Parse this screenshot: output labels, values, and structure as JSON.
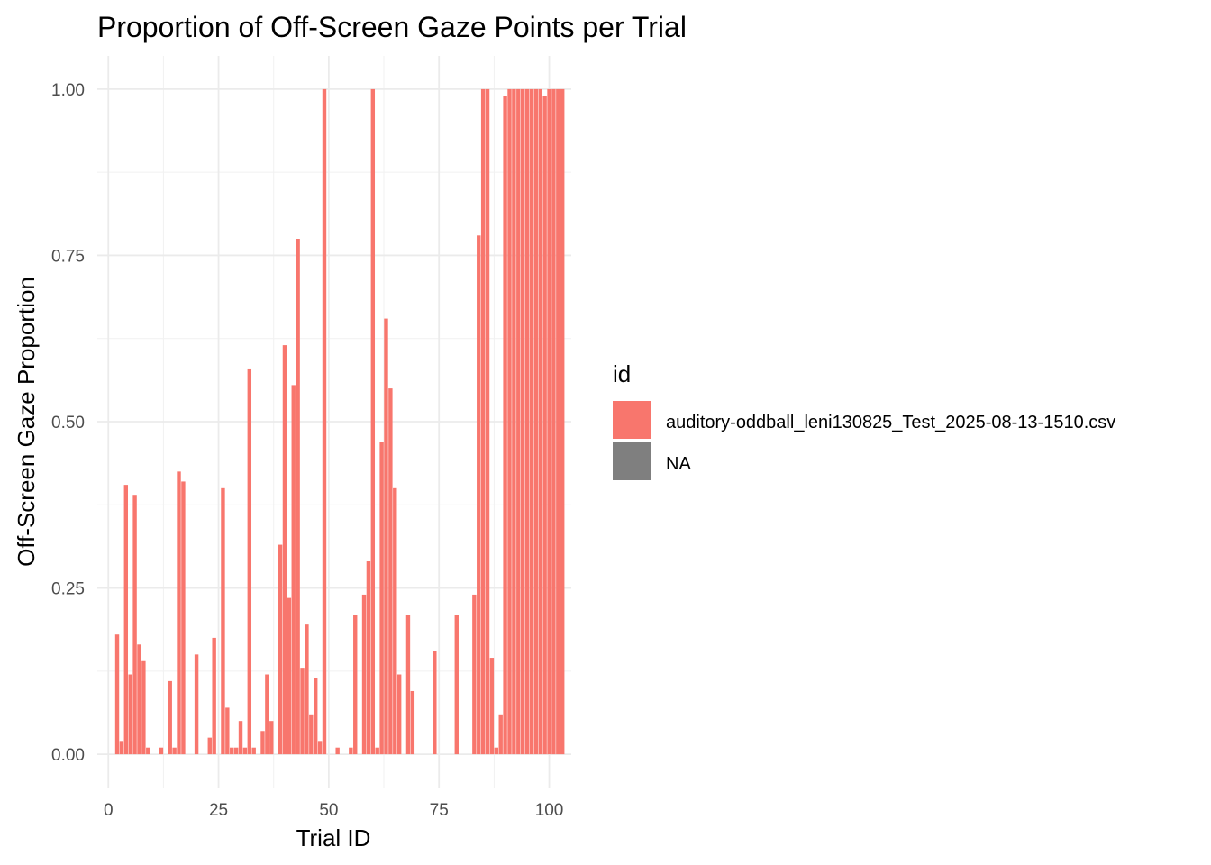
{
  "chart_data": {
    "type": "bar",
    "title": "Proportion of Off-Screen Gaze Points per Trial",
    "xlabel": "Trial ID",
    "ylabel": "Off-Screen Gaze Proportion",
    "xlim": [
      -2.5,
      105
    ],
    "ylim": [
      -0.05,
      1.05
    ],
    "x_ticks": [
      0,
      25,
      50,
      75,
      100
    ],
    "x_tick_labels": [
      "0",
      "25",
      "50",
      "75",
      "100"
    ],
    "y_ticks": [
      0,
      0.25,
      0.5,
      0.75,
      1.0
    ],
    "y_tick_labels": [
      "0.00",
      "0.25",
      "0.50",
      "0.75",
      "1.00"
    ],
    "grid": true,
    "theme": "minimal",
    "legend": {
      "title": "id",
      "position": "right",
      "entries": [
        {
          "label": "auditory-oddball_leni130825_Test_2025-08-13-1510.csv",
          "color": "#F8766D"
        },
        {
          "label": "NA",
          "color": "#7F7F7F"
        }
      ]
    },
    "series": [
      {
        "name": "auditory-oddball_leni130825_Test_2025-08-13-1510.csv",
        "color": "#F8766D",
        "x": [
          2,
          3,
          4,
          5,
          6,
          7,
          8,
          9,
          12,
          14,
          15,
          16,
          17,
          20,
          23,
          24,
          26,
          27,
          28,
          29,
          30,
          31,
          32,
          33,
          35,
          36,
          37,
          39,
          40,
          41,
          42,
          43,
          44,
          45,
          46,
          47,
          48,
          49,
          52,
          55,
          56,
          58,
          59,
          60,
          61,
          62,
          63,
          64,
          65,
          66,
          68,
          69,
          74,
          79,
          83,
          84,
          85,
          86,
          87,
          88,
          89,
          90,
          91,
          92,
          93,
          94,
          95,
          96,
          97,
          98,
          99,
          100,
          101,
          102,
          103
        ],
        "values": [
          0.18,
          0.02,
          0.405,
          0.12,
          0.39,
          0.165,
          0.14,
          0.01,
          0.01,
          0.11,
          0.01,
          0.425,
          0.41,
          0.15,
          0.025,
          0.175,
          0.4,
          0.07,
          0.01,
          0.01,
          0.05,
          0.01,
          0.58,
          0.01,
          0.035,
          0.12,
          0.05,
          0.315,
          0.615,
          0.235,
          0.555,
          0.775,
          0.13,
          0.195,
          0.06,
          0.115,
          0.02,
          1.0,
          0.01,
          0.01,
          0.21,
          0.24,
          0.29,
          1.0,
          0.01,
          0.47,
          0.655,
          0.55,
          0.4,
          0.12,
          0.21,
          0.095,
          0.155,
          0.21,
          0.24,
          0.78,
          1.0,
          1.0,
          0.145,
          0.01,
          0.06,
          0.99,
          1.0,
          1.0,
          1.0,
          1.0,
          1.0,
          1.0,
          1.0,
          1.0,
          0.99,
          1.0,
          1.0,
          1.0,
          1.0
        ]
      }
    ]
  }
}
